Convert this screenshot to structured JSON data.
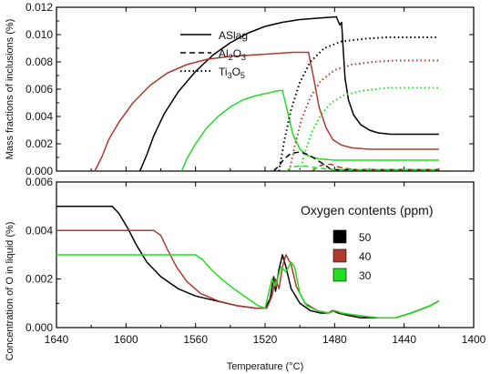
{
  "chart_data": [
    {
      "type": "line",
      "panel": "top",
      "ylabel": "Mass fractions of inclusions (%)",
      "xlim": [
        1640,
        1400
      ],
      "ylim": [
        0,
        0.012
      ],
      "yticks": [
        "0.000",
        "0.002",
        "0.004",
        "0.006",
        "0.008",
        "0.010",
        "0.012"
      ],
      "legend": {
        "placement": "upper-center",
        "entries": [
          {
            "label": "ASlag",
            "sub": "",
            "tail": "",
            "style": "solid"
          },
          {
            "label": "Al",
            "sub": "2",
            "tail": "O",
            "sub2": "3",
            "style": "dashed"
          },
          {
            "label": "Ti",
            "sub": "3",
            "tail": "O",
            "sub2": "5",
            "style": "dotted"
          }
        ]
      },
      "series": [
        {
          "oxygen_ppm": 50,
          "phase": "ASlag",
          "style": "solid",
          "points": [
            [
              1592,
              0
            ],
            [
              1588,
              0.0012
            ],
            [
              1584,
              0.0026
            ],
            [
              1578,
              0.0042
            ],
            [
              1570,
              0.0058
            ],
            [
              1560,
              0.0073
            ],
            [
              1550,
              0.0085
            ],
            [
              1540,
              0.0094
            ],
            [
              1530,
              0.0101
            ],
            [
              1520,
              0.0106
            ],
            [
              1510,
              0.0109
            ],
            [
              1500,
              0.0111
            ],
            [
              1490,
              0.0112
            ],
            [
              1479,
              0.0113
            ],
            [
              1477,
              0.0107
            ],
            [
              1476,
              0.0109
            ],
            [
              1475,
              0.0088
            ],
            [
              1474,
              0.0068
            ],
            [
              1472,
              0.0052
            ],
            [
              1469,
              0.0041
            ],
            [
              1465,
              0.0034
            ],
            [
              1460,
              0.003
            ],
            [
              1455,
              0.0028
            ],
            [
              1448,
              0.0027
            ],
            [
              1440,
              0.0027
            ],
            [
              1420,
              0.0027
            ]
          ]
        },
        {
          "oxygen_ppm": 40,
          "phase": "ASlag",
          "style": "solid",
          "points": [
            [
              1618,
              0
            ],
            [
              1614,
              0.001
            ],
            [
              1610,
              0.0023
            ],
            [
              1604,
              0.0036
            ],
            [
              1596,
              0.005
            ],
            [
              1586,
              0.0063
            ],
            [
              1576,
              0.0072
            ],
            [
              1565,
              0.0078
            ],
            [
              1553,
              0.0082
            ],
            [
              1540,
              0.0084
            ],
            [
              1528,
              0.0085
            ],
            [
              1515,
              0.0086
            ],
            [
              1504,
              0.0087
            ],
            [
              1495,
              0.0087
            ],
            [
              1492,
              0.0068
            ],
            [
              1489,
              0.0047
            ],
            [
              1485,
              0.0032
            ],
            [
              1481,
              0.0023
            ],
            [
              1476,
              0.0019
            ],
            [
              1470,
              0.0017
            ],
            [
              1460,
              0.0016
            ],
            [
              1440,
              0.0016
            ],
            [
              1420,
              0.0016
            ]
          ]
        },
        {
          "oxygen_ppm": 30,
          "phase": "ASlag",
          "style": "solid",
          "points": [
            [
              1568,
              0
            ],
            [
              1565,
              0.0009
            ],
            [
              1560,
              0.002
            ],
            [
              1554,
              0.0031
            ],
            [
              1547,
              0.004
            ],
            [
              1540,
              0.0047
            ],
            [
              1533,
              0.0052
            ],
            [
              1526,
              0.0055
            ],
            [
              1519,
              0.0057
            ],
            [
              1512,
              0.0059
            ],
            [
              1510,
              0.0059
            ],
            [
              1507,
              0.0043
            ],
            [
              1504,
              0.0027
            ],
            [
              1500,
              0.0016
            ],
            [
              1495,
              0.0011
            ],
            [
              1489,
              0.0009
            ],
            [
              1480,
              0.0008
            ],
            [
              1460,
              0.0008
            ],
            [
              1420,
              0.0008
            ]
          ]
        },
        {
          "oxygen_ppm": 50,
          "phase": "Al2O3",
          "style": "dashed",
          "points": [
            [
              1515,
              0
            ],
            [
              1512,
              0.0004
            ],
            [
              1509,
              0.0009
            ],
            [
              1505,
              0.0013
            ],
            [
              1500,
              0.0014
            ],
            [
              1495,
              0.0012
            ],
            [
              1490,
              0.0008
            ],
            [
              1485,
              0.0004
            ],
            [
              1482,
              0.0001
            ],
            [
              1478,
              0.0001
            ],
            [
              1420,
              0.0001
            ]
          ]
        },
        {
          "oxygen_ppm": 40,
          "phase": "Al2O3",
          "style": "dashed",
          "points": [
            [
              1493,
              0
            ],
            [
              1490,
              0.0003
            ],
            [
              1486,
              0.0005
            ],
            [
              1482,
              0.0005
            ],
            [
              1478,
              0.0003
            ],
            [
              1474,
              0.0002
            ],
            [
              1468,
              0.0001
            ],
            [
              1420,
              0.0001
            ]
          ]
        },
        {
          "oxygen_ppm": 30,
          "phase": "Al2O3",
          "style": "dashed",
          "points": [
            [
              1508,
              0
            ],
            [
              1504,
              0.0003
            ],
            [
              1499,
              0.0004
            ],
            [
              1494,
              0.0003
            ],
            [
              1488,
              0.0002
            ],
            [
              1480,
              0.0001
            ],
            [
              1420,
              0.0001
            ]
          ]
        },
        {
          "oxygen_ppm": 50,
          "phase": "Ti3O5",
          "style": "dotted",
          "points": [
            [
              1512,
              0
            ],
            [
              1509,
              0.0022
            ],
            [
              1505,
              0.0045
            ],
            [
              1500,
              0.0065
            ],
            [
              1494,
              0.008
            ],
            [
              1486,
              0.009
            ],
            [
              1476,
              0.0095
            ],
            [
              1462,
              0.0097
            ],
            [
              1450,
              0.0098
            ],
            [
              1420,
              0.0098
            ]
          ]
        },
        {
          "oxygen_ppm": 40,
          "phase": "Ti3O5",
          "style": "dotted",
          "points": [
            [
              1506,
              0
            ],
            [
              1503,
              0.0018
            ],
            [
              1499,
              0.0038
            ],
            [
              1494,
              0.0054
            ],
            [
              1488,
              0.0066
            ],
            [
              1480,
              0.0074
            ],
            [
              1470,
              0.0078
            ],
            [
              1458,
              0.008
            ],
            [
              1445,
              0.0081
            ],
            [
              1420,
              0.0081
            ]
          ]
        },
        {
          "oxygen_ppm": 30,
          "phase": "Ti3O5",
          "style": "dotted",
          "points": [
            [
              1500,
              0
            ],
            [
              1497,
              0.0014
            ],
            [
              1493,
              0.0029
            ],
            [
              1488,
              0.0041
            ],
            [
              1482,
              0.005
            ],
            [
              1474,
              0.0056
            ],
            [
              1463,
              0.0059
            ],
            [
              1450,
              0.0061
            ],
            [
              1420,
              0.0061
            ]
          ]
        }
      ]
    },
    {
      "type": "line",
      "panel": "bottom",
      "xlabel": "Temperature (°C)",
      "ylabel": "Concentration of O in liquid (%)",
      "xlim": [
        1640,
        1400
      ],
      "ylim": [
        0,
        0.006
      ],
      "xticks": [
        1640,
        1600,
        1560,
        1520,
        1480,
        1440,
        1400
      ],
      "yticks": [
        "0.000",
        "0.002",
        "0.004",
        "0.006"
      ],
      "legend": {
        "title": "Oxygen contents (ppm)",
        "placement": "right",
        "entries": [
          {
            "label": "50",
            "color": "#000000"
          },
          {
            "label": "40",
            "color": "#b03a2e"
          },
          {
            "label": "30",
            "color": "#22dd22"
          }
        ]
      },
      "series": [
        {
          "name": "50",
          "points": [
            [
              1640,
              0.005
            ],
            [
              1608,
              0.005
            ],
            [
              1604,
              0.0047
            ],
            [
              1599,
              0.0041
            ],
            [
              1594,
              0.0034
            ],
            [
              1588,
              0.0027
            ],
            [
              1580,
              0.0021
            ],
            [
              1570,
              0.0016
            ],
            [
              1560,
              0.0013
            ],
            [
              1548,
              0.0011
            ],
            [
              1536,
              0.0009
            ],
            [
              1525,
              0.0008
            ],
            [
              1520,
              0.0008
            ],
            [
              1517,
              0.0012
            ],
            [
              1515,
              0.0021
            ],
            [
              1514,
              0.0015
            ],
            [
              1512,
              0.0024
            ],
            [
              1510,
              0.003
            ],
            [
              1508,
              0.0025
            ],
            [
              1505,
              0.0016
            ],
            [
              1500,
              0.001
            ],
            [
              1494,
              0.0007
            ],
            [
              1488,
              0.0006
            ],
            [
              1484,
              0.0006
            ],
            [
              1481,
              0.0007
            ],
            [
              1478,
              0.0006
            ],
            [
              1472,
              0.0005
            ],
            [
              1465,
              0.0004
            ],
            [
              1455,
              0.0004
            ],
            [
              1445,
              0.0004
            ],
            [
              1436,
              0.0006
            ],
            [
              1425,
              0.0009
            ],
            [
              1420,
              0.0011
            ]
          ]
        },
        {
          "name": "40",
          "points": [
            [
              1640,
              0.004
            ],
            [
              1584,
              0.004
            ],
            [
              1580,
              0.0038
            ],
            [
              1576,
              0.0032
            ],
            [
              1571,
              0.0025
            ],
            [
              1565,
              0.0019
            ],
            [
              1557,
              0.0014
            ],
            [
              1547,
              0.0011
            ],
            [
              1536,
              0.0009
            ],
            [
              1525,
              0.0008
            ],
            [
              1519,
              0.0008
            ],
            [
              1516,
              0.0013
            ],
            [
              1514,
              0.002
            ],
            [
              1512,
              0.0016
            ],
            [
              1510,
              0.0025
            ],
            [
              1508,
              0.003
            ],
            [
              1505,
              0.0026
            ],
            [
              1502,
              0.0017
            ],
            [
              1497,
              0.001
            ],
            [
              1490,
              0.0007
            ],
            [
              1483,
              0.0006
            ],
            [
              1480,
              0.0007
            ],
            [
              1476,
              0.0006
            ],
            [
              1468,
              0.0005
            ],
            [
              1455,
              0.0004
            ],
            [
              1445,
              0.0004
            ],
            [
              1436,
              0.0006
            ],
            [
              1425,
              0.0009
            ],
            [
              1420,
              0.0011
            ]
          ]
        },
        {
          "name": "30",
          "points": [
            [
              1640,
              0.003
            ],
            [
              1560,
              0.003
            ],
            [
              1556,
              0.0028
            ],
            [
              1551,
              0.0024
            ],
            [
              1545,
              0.002
            ],
            [
              1538,
              0.0016
            ],
            [
              1530,
              0.0012
            ],
            [
              1524,
              0.0009
            ],
            [
              1520,
              0.0008
            ],
            [
              1518,
              0.0014
            ],
            [
              1516,
              0.002
            ],
            [
              1514,
              0.0017
            ],
            [
              1511,
              0.0025
            ],
            [
              1508,
              0.0023
            ],
            [
              1505,
              0.0027
            ],
            [
              1503,
              0.0025
            ],
            [
              1500,
              0.0014
            ],
            [
              1496,
              0.0009
            ],
            [
              1490,
              0.0007
            ],
            [
              1484,
              0.0006
            ],
            [
              1480,
              0.0007
            ],
            [
              1476,
              0.0006
            ],
            [
              1466,
              0.0005
            ],
            [
              1455,
              0.0004
            ],
            [
              1445,
              0.0004
            ],
            [
              1436,
              0.0006
            ],
            [
              1425,
              0.0009
            ],
            [
              1420,
              0.0011
            ]
          ]
        }
      ]
    }
  ],
  "colors": {
    "50": "#000000",
    "40": "#b03a2e",
    "30": "#22dd22"
  }
}
